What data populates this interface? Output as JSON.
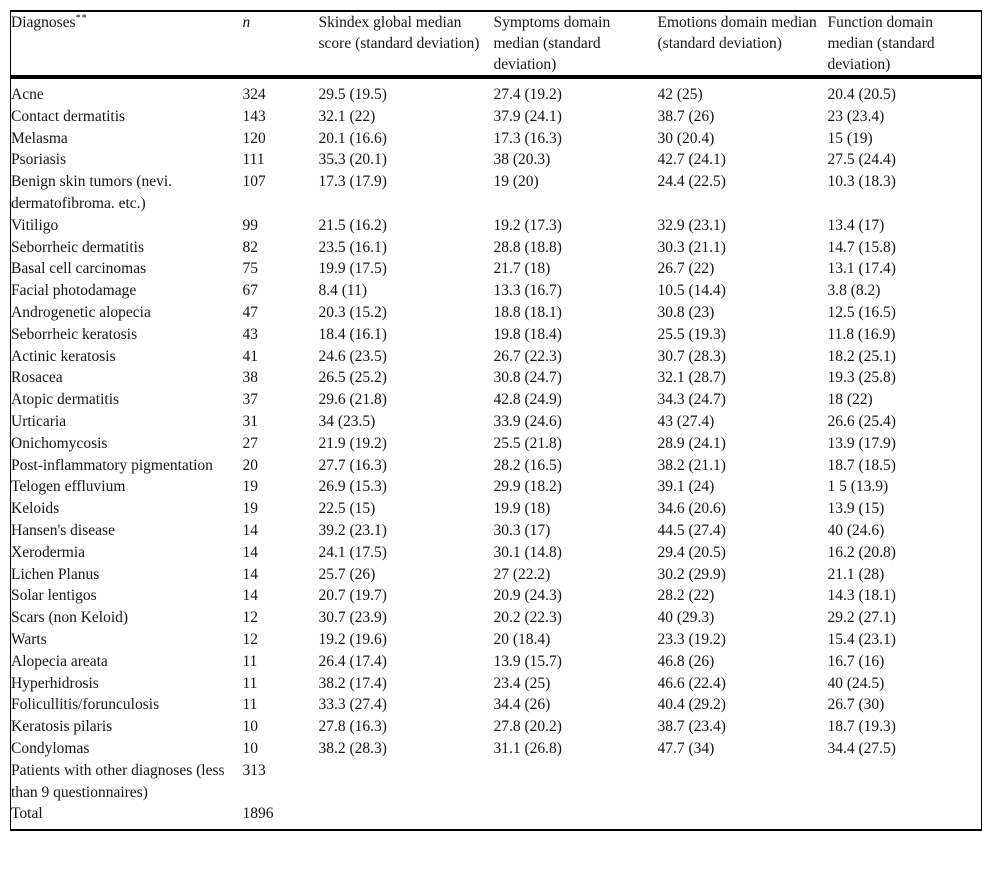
{
  "table": {
    "columns": [
      {
        "label": "Diagnoses",
        "note": "**"
      },
      {
        "label": "n"
      },
      {
        "label": "Skindex global median score (standard deviation)"
      },
      {
        "label": "Symptoms domain median (standard deviation)"
      },
      {
        "label": "Emotions domain median (standard deviation)"
      },
      {
        "label": "Function domain median (standard deviation)"
      }
    ],
    "rows": [
      [
        "Acne",
        "324",
        "29.5 (19.5)",
        "27.4 (19.2)",
        "42 (25)",
        "20.4 (20.5)"
      ],
      [
        "Contact dermatitis",
        "143",
        "32.1 (22)",
        "37.9 (24.1)",
        "38.7 (26)",
        "23 (23.4)"
      ],
      [
        "Melasma",
        "120",
        "20.1 (16.6)",
        "17.3 (16.3)",
        "30 (20.4)",
        "15 (19)"
      ],
      [
        "Psoriasis",
        "111",
        "35.3 (20.1)",
        "38 (20.3)",
        "42.7 (24.1)",
        "27.5 (24.4)"
      ],
      [
        "Benign skin tumors (nevi. dermatofibroma. etc.)",
        "107",
        "17.3 (17.9)",
        "19 (20)",
        "24.4 (22.5)",
        "10.3 (18.3)"
      ],
      [
        "Vitiligo",
        "99",
        "21.5 (16.2)",
        "19.2 (17.3)",
        "32.9 (23.1)",
        "13.4 (17)"
      ],
      [
        "Seborrheic dermatitis",
        "82",
        "23.5 (16.1)",
        "28.8 (18.8)",
        "30.3 (21.1)",
        "14.7 (15.8)"
      ],
      [
        "Basal cell carcinomas",
        "75",
        "19.9 (17.5)",
        "21.7 (18)",
        "26.7 (22)",
        "13.1 (17.4)"
      ],
      [
        "Facial photodamage",
        "67",
        "8.4 (11)",
        "13.3 (16.7)",
        "10.5 (14.4)",
        "3.8 (8.2)"
      ],
      [
        "Androgenetic alopecia",
        "47",
        "20.3 (15.2)",
        "18.8 (18.1)",
        "30.8 (23)",
        "12.5 (16.5)"
      ],
      [
        "Seborrheic keratosis",
        "43",
        "18.4 (16.1)",
        "19.8 (18.4)",
        "25.5 (19.3)",
        "11.8 (16.9)"
      ],
      [
        "Actinic keratosis",
        "41",
        "24.6 (23.5)",
        "26.7 (22.3)",
        "30.7 (28.3)",
        "18.2 (25.1)"
      ],
      [
        "Rosacea",
        "38",
        "26.5 (25.2)",
        "30.8 (24.7)",
        "32.1 (28.7)",
        "19.3 (25.8)"
      ],
      [
        "Atopic dermatitis",
        "37",
        "29.6 (21.8)",
        "42.8 (24.9)",
        "34.3 (24.7)",
        "18 (22)"
      ],
      [
        "Urticaria",
        "31",
        "34 (23.5)",
        "33.9 (24.6)",
        "43 (27.4)",
        "26.6 (25.4)"
      ],
      [
        "Onichomycosis",
        "27",
        "21.9 (19.2)",
        "25.5 (21.8)",
        "28.9 (24.1)",
        "13.9 (17.9)"
      ],
      [
        "Post-inflammatory pigmentation",
        "20",
        "27.7 (16.3)",
        "28.2 (16.5)",
        "38.2 (21.1)",
        "18.7 (18.5)"
      ],
      [
        "Telogen effluvium",
        "19",
        "26.9 (15.3)",
        "29.9 (18.2)",
        "39.1 (24)",
        "1 5 (13.9)"
      ],
      [
        "Keloids",
        "19",
        "22.5 (15)",
        "19.9 (18)",
        "34.6 (20.6)",
        "13.9 (15)"
      ],
      [
        "Hansen's disease",
        "14",
        "39.2 (23.1)",
        "30.3 (17)",
        "44.5 (27.4)",
        "40 (24.6)"
      ],
      [
        "Xerodermia",
        "14",
        "24.1 (17.5)",
        "30.1 (14.8)",
        "29.4 (20.5)",
        "16.2 (20.8)"
      ],
      [
        "Lichen Planus",
        "14",
        "25.7 (26)",
        "27 (22.2)",
        "30.2 (29.9)",
        "21.1 (28)"
      ],
      [
        "Solar lentigos",
        "14",
        "20.7 (19.7)",
        "20.9 (24.3)",
        "28.2 (22)",
        "14.3 (18.1)"
      ],
      [
        "Scars (non Keloid)",
        "12",
        "30.7 (23.9)",
        "20.2 (22.3)",
        "40 (29.3)",
        "29.2 (27.1)"
      ],
      [
        "Warts",
        "12",
        "19.2 (19.6)",
        "20 (18.4)",
        "23.3 (19.2)",
        "15.4 (23.1)"
      ],
      [
        "Alopecia areata",
        "11",
        "26.4 (17.4)",
        "13.9 (15.7)",
        "46.8 (26)",
        "16.7 (16)"
      ],
      [
        "Hyperhidrosis",
        "11",
        "38.2 (17.4)",
        "23.4 (25)",
        "46.6 (22.4)",
        "40 (24.5)"
      ],
      [
        "Folicullitis/forunculosis",
        "11",
        "33.3 (27.4)",
        "34.4 (26)",
        "40.4 (29.2)",
        "26.7 (30)"
      ],
      [
        "Keratosis pilaris",
        "10",
        "27.8 (16.3)",
        "27.8 (20.2)",
        "38.7 (23.4)",
        "18.7 (19.3)"
      ],
      [
        "Condylomas",
        "10",
        "38.2 (28.3)",
        "31.1 (26.8)",
        "47.7 (34)",
        "34.4 (27.5)"
      ],
      [
        "Patients with other diagnoses (less than 9 questionnaires)",
        "313",
        "",
        "",
        "",
        ""
      ],
      [
        "Total",
        "1896",
        "",
        "",
        "",
        ""
      ]
    ]
  }
}
